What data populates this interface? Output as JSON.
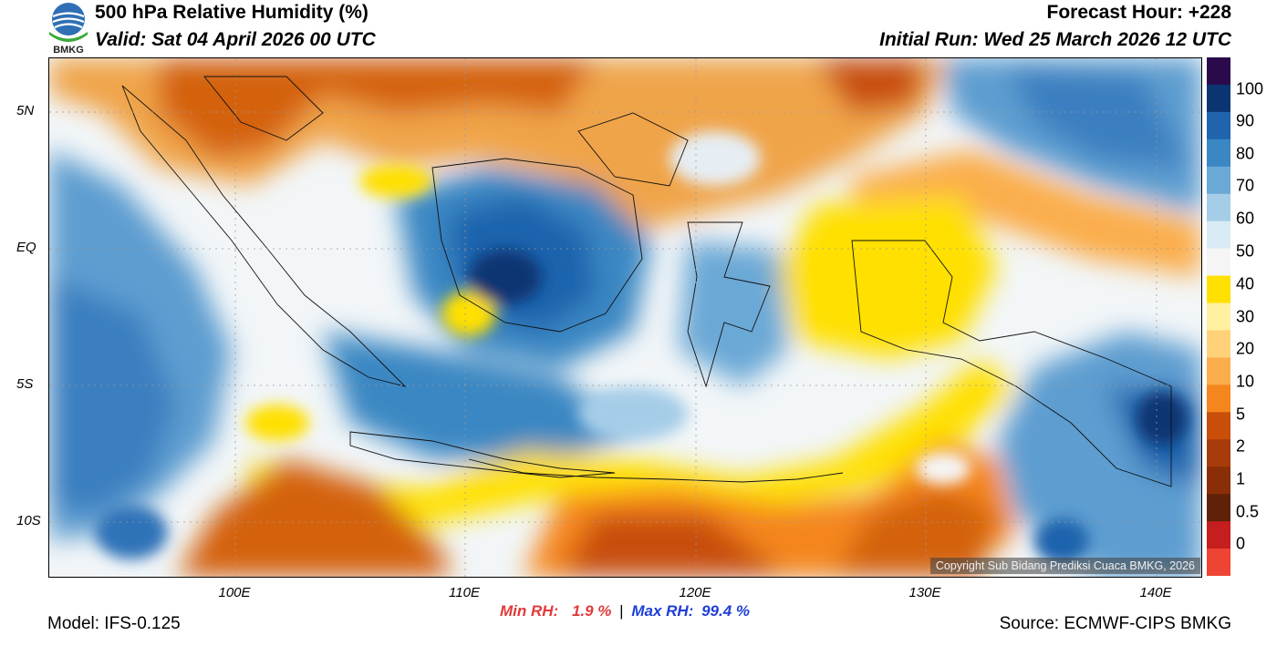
{
  "header": {
    "title": "500 hPa Relative Humidity (%)",
    "valid": "Valid: Sat 04 April 2026 00 UTC",
    "forecast_hour": "Forecast Hour: +228",
    "initial_run": "Initial Run: Wed 25 March 2026 12 UTC",
    "logo_text": "BMKG"
  },
  "map": {
    "lat_labels": [
      "5N",
      "EQ",
      "5S",
      "10S"
    ],
    "lon_labels": [
      "100E",
      "110E",
      "120E",
      "130E",
      "140E"
    ],
    "copyright": "Copyright Sub Bidang Prediksi Cuaca BMKG, 2026"
  },
  "colorbar": {
    "labels": [
      "100",
      "90",
      "80",
      "70",
      "60",
      "50",
      "40",
      "30",
      "20",
      "10",
      "5",
      "2",
      "1",
      "0.5",
      "0"
    ],
    "colors": [
      "#2a0a4a",
      "#0b3572",
      "#1f64ad",
      "#3b87c3",
      "#6aa8d6",
      "#a6cde8",
      "#d9ebf5",
      "#f5f5f5",
      "#ffe000",
      "#fff0a0",
      "#ffd27a",
      "#fbad4c",
      "#f5861e",
      "#c84e0a",
      "#a83b0a",
      "#8a2e08",
      "#5f2108",
      "#c41e1e",
      "#ee4433"
    ]
  },
  "stats": {
    "min_label": "Min RH:",
    "min_value": "1.9 %",
    "separator": "|",
    "max_label": "Max RH:",
    "max_value": "99.4 %"
  },
  "footer": {
    "model": "Model: IFS-0.125",
    "source": "Source: ECMWF-CIPS BMKG"
  }
}
